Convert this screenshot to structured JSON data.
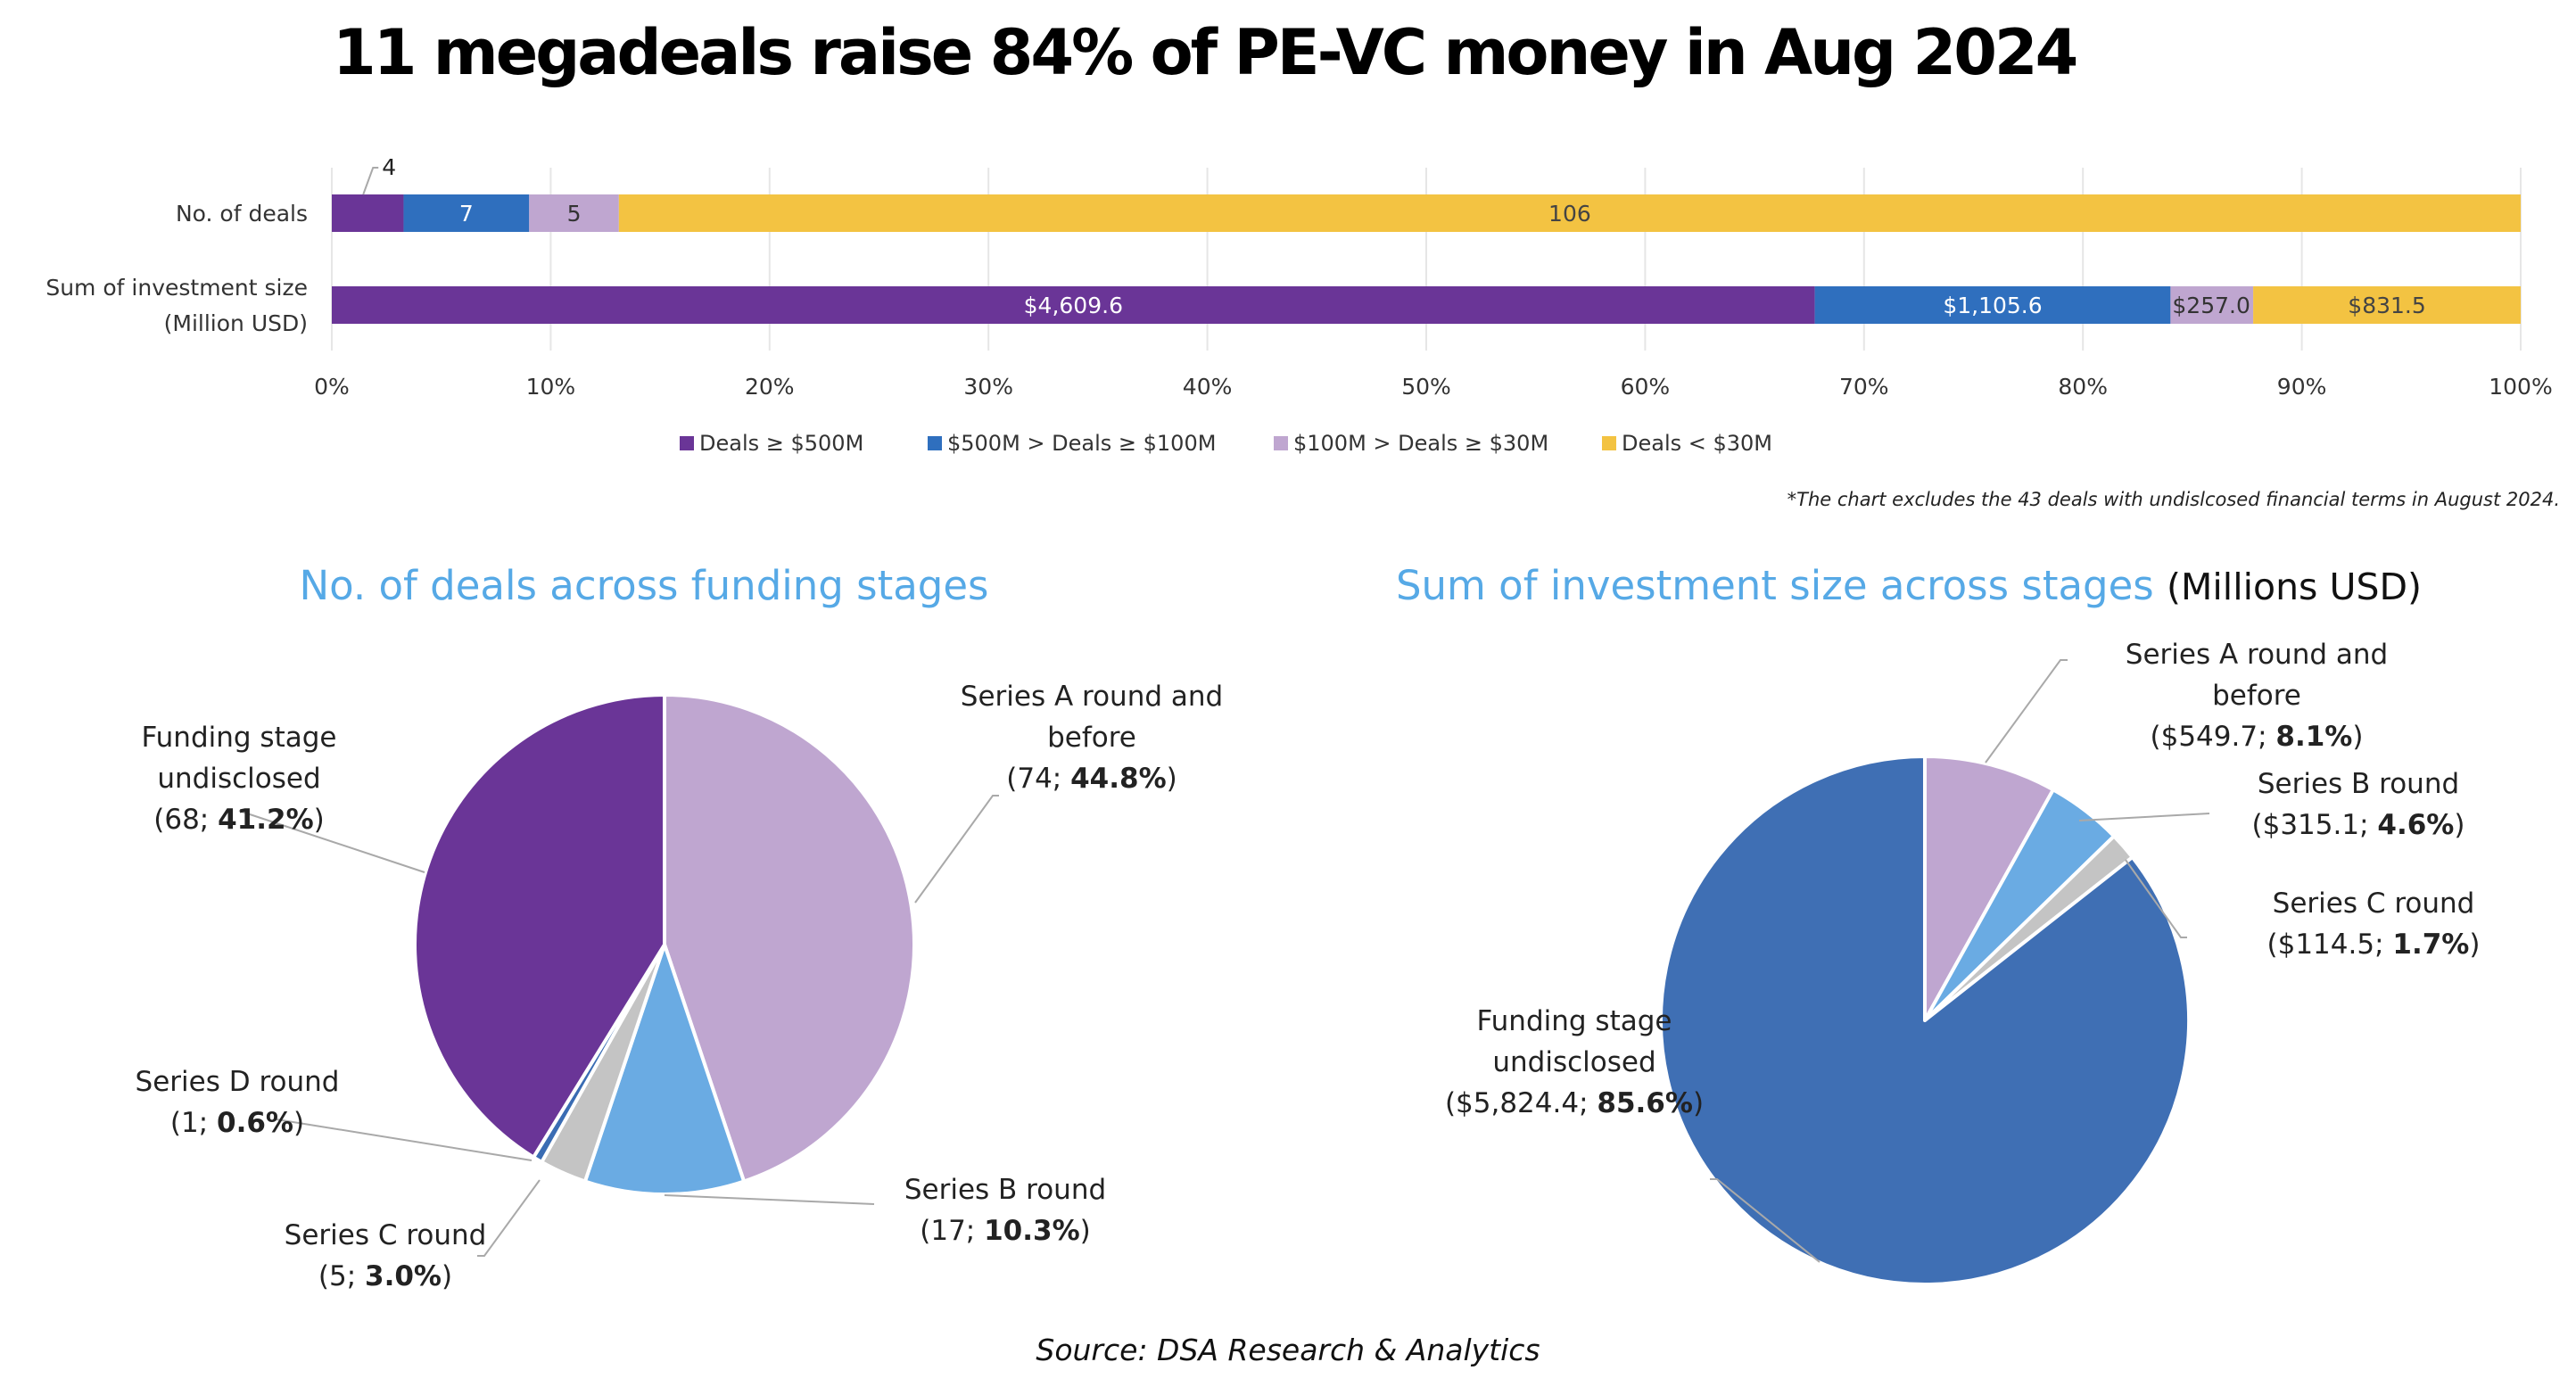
{
  "title": "11 megadeals raise 84% of PE-VC money in Aug 2024",
  "colors": {
    "deals_ge_500": "#6a3597",
    "deals_100_500": "#2f6fbe",
    "deals_30_100": "#bfa6d0",
    "deals_lt_30": "#f3c342",
    "pie_series_a": "#bfa6d0",
    "pie_series_b": "#6aabe3",
    "pie_series_c": "#c4c4c4",
    "pie_series_d": "#3a6cb3",
    "pie_undisclosed_left": "#6a3597",
    "pie_undisclosed_right": "#3f6fb4",
    "pie_title": "#56a9e6"
  },
  "chart_data": [
    {
      "type": "bar",
      "orientation": "horizontal",
      "stacked": "percent",
      "title": "",
      "categories": [
        "No. of deals",
        "Sum of investment size (Million USD)"
      ],
      "category_lines": [
        [
          "No. of deals"
        ],
        [
          "Sum of investment size",
          "(Million USD)"
        ]
      ],
      "series": [
        {
          "name": "Deals ≥ $500M",
          "values": [
            4,
            4609.6
          ],
          "labels": [
            "4",
            "$4,609.6"
          ]
        },
        {
          "name": "$500M > Deals ≥ $100M",
          "values": [
            7,
            1105.6
          ],
          "labels": [
            "7",
            "$1,105.6"
          ]
        },
        {
          "name": "$100M > Deals ≥ $30M",
          "values": [
            5,
            257.0
          ],
          "labels": [
            "5",
            "$257.0"
          ]
        },
        {
          "name": "Deals < $30M",
          "values": [
            106,
            831.5
          ],
          "labels": [
            "106",
            "$831.5"
          ]
        }
      ],
      "xticks": [
        "0%",
        "10%",
        "20%",
        "30%",
        "40%",
        "50%",
        "60%",
        "70%",
        "80%",
        "90%",
        "100%"
      ],
      "xlim": [
        0,
        100
      ],
      "grid": true,
      "legend": "bottom",
      "footnote": "*The chart excludes the 43 deals with undislcosed financial terms in August 2024."
    },
    {
      "type": "pie",
      "title": "No. of deals across funding stages",
      "title_suffix": "",
      "slices": [
        {
          "name": "Series A round and before",
          "lines": [
            "Series A round and",
            "before"
          ],
          "value": 74,
          "value_label": "74",
          "percent": 44.8,
          "percent_label": "44.8%"
        },
        {
          "name": "Series B round",
          "lines": [
            "Series B round"
          ],
          "value": 17,
          "value_label": "17",
          "percent": 10.3,
          "percent_label": "10.3%"
        },
        {
          "name": "Series C round",
          "lines": [
            "Series C round"
          ],
          "value": 5,
          "value_label": "5",
          "percent": 3.0,
          "percent_label": "3.0%"
        },
        {
          "name": "Series D round",
          "lines": [
            "Series D round"
          ],
          "value": 1,
          "value_label": "1",
          "percent": 0.6,
          "percent_label": "0.6%"
        },
        {
          "name": "Funding stage undisclosed",
          "lines": [
            "Funding stage",
            "undisclosed"
          ],
          "value": 68,
          "value_label": "68",
          "percent": 41.2,
          "percent_label": "41.2%"
        }
      ]
    },
    {
      "type": "pie",
      "title": "Sum of investment size across stages",
      "title_suffix": "(Millions USD)",
      "slices": [
        {
          "name": "Series A round and before",
          "lines": [
            "Series A round and",
            "before"
          ],
          "value": 549.7,
          "value_label": "$549.7",
          "percent": 8.1,
          "percent_label": "8.1%"
        },
        {
          "name": "Series B round",
          "lines": [
            "Series B round"
          ],
          "value": 315.1,
          "value_label": "$315.1",
          "percent": 4.6,
          "percent_label": "4.6%"
        },
        {
          "name": "Series C round",
          "lines": [
            "Series C round"
          ],
          "value": 114.5,
          "value_label": "$114.5",
          "percent": 1.7,
          "percent_label": "1.7%"
        },
        {
          "name": "Funding stage undisclosed",
          "lines": [
            "Funding stage",
            "undisclosed"
          ],
          "value": 5824.4,
          "value_label": "$5,824.4",
          "percent": 85.6,
          "percent_label": "85.6%"
        }
      ]
    }
  ],
  "source": "Source: DSA Research & Analytics"
}
